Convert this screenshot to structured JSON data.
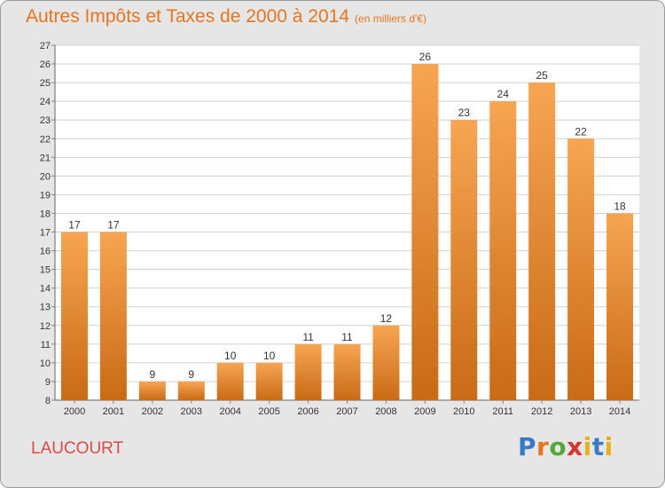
{
  "header": {
    "title": "Autres Impôts et Taxes de 2000 à 2014",
    "subtitle": "(en milliers d'€)"
  },
  "footer": {
    "place": "LAUCOURT",
    "logo": "Proxiti"
  },
  "colors": {
    "accent": "#e8741e",
    "bar_top": "#f7a552",
    "bar_bottom": "#c96a16",
    "place": "#e04848"
  },
  "chart_data": {
    "type": "bar",
    "title": "Autres Impôts et Taxes de 2000 à 2014",
    "subtitle": "(en milliers d'€)",
    "categories": [
      "2000",
      "2001",
      "2002",
      "2003",
      "2004",
      "2005",
      "2006",
      "2007",
      "2008",
      "2009",
      "2010",
      "2011",
      "2012",
      "2013",
      "2014"
    ],
    "values": [
      17,
      17,
      9,
      9,
      10,
      10,
      11,
      11,
      12,
      26,
      23,
      24,
      25,
      22,
      18
    ],
    "ylim": [
      8,
      27
    ],
    "yticks": [
      8,
      9,
      10,
      11,
      12,
      13,
      14,
      15,
      16,
      17,
      18,
      19,
      20,
      21,
      22,
      23,
      24,
      25,
      26,
      27
    ],
    "grid": true,
    "data_labels": true
  }
}
